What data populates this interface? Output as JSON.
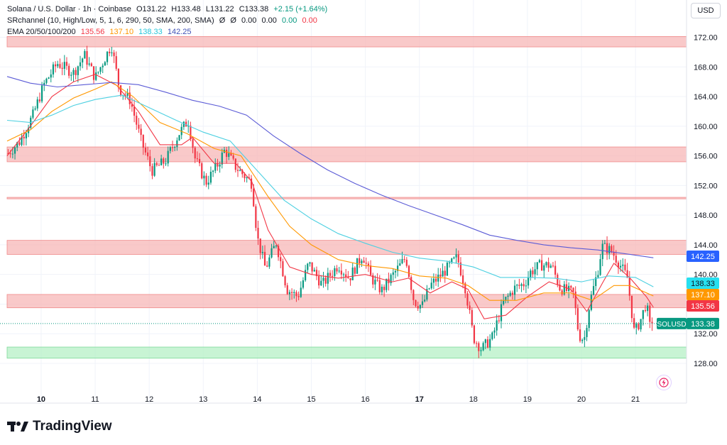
{
  "legend": {
    "symbol": "Solana / U.S. Dollar · 1h · Coinbase",
    "open": "O131.22",
    "high": "H133.48",
    "low": "L131.22",
    "close": "C133.38",
    "change": "+2.15 (+1.64%)",
    "sr_title": "SRchannel (10, High/Low, 5, 1, 6, 290, 50, SMA, 200, SMA)",
    "sr_values": [
      "Ø",
      "Ø",
      "0.00",
      "0.00",
      "0.00",
      "0.00"
    ],
    "ema_title": "EMA 20/50/100/200",
    "ema_values": [
      "135.56",
      "137.10",
      "138.33",
      "142.25"
    ]
  },
  "currency_button": "USD",
  "brand": "TradingView",
  "colors": {
    "up": "#089981",
    "down": "#f23645",
    "ema20": "#f23645",
    "ema50": "#ff9800",
    "ema100": "#4dd0e1",
    "ema200": "#5b5bd6",
    "res_zone": "#f7b7b7",
    "sup_zone": "#b6f0c6"
  },
  "chart_data": {
    "type": "candlestick",
    "title": "Solana / U.S. Dollar · 1h · Coinbase",
    "ylim": [
      126.2,
      174.5
    ],
    "y_ticks": [
      "128.00",
      "132.00",
      "136.00",
      "140.00",
      "144.00",
      "148.00",
      "152.00",
      "156.00",
      "160.00",
      "164.00",
      "168.00",
      "172.00"
    ],
    "x_ticks": [
      "10",
      "11",
      "12",
      "13",
      "14",
      "15",
      "16",
      "17",
      "18",
      "19",
      "20",
      "21"
    ],
    "x_tick_days": [
      10,
      11,
      12,
      13,
      14,
      15,
      16,
      17,
      18,
      19,
      20,
      21
    ],
    "x_range_days": [
      9.37,
      21.55
    ],
    "zones": [
      {
        "type": "resistance",
        "from": 170.7,
        "to": 172.1
      },
      {
        "type": "resistance",
        "from": 155.2,
        "to": 157.2
      },
      {
        "type": "resistance",
        "from": 150.2,
        "to": 150.4
      },
      {
        "type": "resistance",
        "from": 142.7,
        "to": 144.6
      },
      {
        "type": "resistance",
        "from": 135.5,
        "to": 137.3
      },
      {
        "type": "support",
        "from": 128.7,
        "to": 130.2
      }
    ],
    "price_path": [
      [
        9.37,
        156.2
      ],
      [
        9.6,
        157.9
      ],
      [
        9.85,
        161.5
      ],
      [
        10.05,
        165.6
      ],
      [
        10.3,
        168.5
      ],
      [
        10.6,
        167.2
      ],
      [
        10.8,
        169.6
      ],
      [
        11.0,
        166.5
      ],
      [
        11.1,
        168.0
      ],
      [
        11.3,
        171.0
      ],
      [
        11.45,
        165.0
      ],
      [
        11.65,
        163.5
      ],
      [
        11.85,
        158.0
      ],
      [
        12.05,
        154.0
      ],
      [
        12.3,
        155.3
      ],
      [
        12.55,
        159.0
      ],
      [
        12.72,
        160.8
      ],
      [
        12.85,
        155.6
      ],
      [
        13.05,
        152.4
      ],
      [
        13.25,
        154.6
      ],
      [
        13.4,
        156.8
      ],
      [
        13.6,
        154.5
      ],
      [
        13.9,
        152.3
      ],
      [
        14.0,
        145.0
      ],
      [
        14.15,
        140.8
      ],
      [
        14.35,
        144.3
      ],
      [
        14.55,
        138.0
      ],
      [
        14.75,
        137.0
      ],
      [
        14.95,
        141.5
      ],
      [
        15.2,
        138.6
      ],
      [
        15.5,
        141.3
      ],
      [
        15.7,
        139.5
      ],
      [
        15.95,
        142.7
      ],
      [
        16.1,
        139.6
      ],
      [
        16.3,
        137.8
      ],
      [
        16.55,
        140.3
      ],
      [
        16.75,
        142.3
      ],
      [
        16.9,
        136.4
      ],
      [
        17.05,
        135.7
      ],
      [
        17.2,
        138.5
      ],
      [
        17.45,
        140.3
      ],
      [
        17.7,
        142.3
      ],
      [
        17.85,
        138.2
      ],
      [
        18.0,
        131.5
      ],
      [
        18.15,
        129.9
      ],
      [
        18.35,
        131.5
      ],
      [
        18.55,
        136.1
      ],
      [
        18.75,
        138.1
      ],
      [
        18.95,
        138.8
      ],
      [
        19.05,
        140.3
      ],
      [
        19.25,
        141.3
      ],
      [
        19.45,
        141.2
      ],
      [
        19.6,
        138.2
      ],
      [
        19.85,
        137.4
      ],
      [
        19.95,
        131.8
      ],
      [
        20.05,
        131.2
      ],
      [
        20.15,
        136.1
      ],
      [
        20.3,
        140.4
      ],
      [
        20.38,
        143.8
      ],
      [
        20.55,
        143.2
      ],
      [
        20.7,
        141.5
      ],
      [
        20.85,
        139.5
      ],
      [
        20.98,
        132.0
      ],
      [
        21.1,
        134.0
      ],
      [
        21.2,
        136.2
      ],
      [
        21.3,
        131.2
      ],
      [
        21.33,
        133.38
      ]
    ],
    "ema_series": [
      {
        "name": "EMA 20",
        "last": 135.56,
        "values": [
          [
            9.37,
            156.0
          ],
          [
            9.8,
            160.0
          ],
          [
            10.2,
            164.0
          ],
          [
            10.6,
            166.0
          ],
          [
            11.0,
            167.0
          ],
          [
            11.4,
            165.5
          ],
          [
            11.8,
            162.0
          ],
          [
            12.2,
            157.5
          ],
          [
            12.6,
            157.5
          ],
          [
            12.8,
            158.5
          ],
          [
            13.2,
            155.0
          ],
          [
            13.6,
            155.0
          ],
          [
            13.9,
            152.5
          ],
          [
            14.2,
            146.0
          ],
          [
            14.6,
            141.0
          ],
          [
            15.0,
            140.0
          ],
          [
            15.5,
            139.5
          ],
          [
            16.0,
            140.0
          ],
          [
            16.5,
            139.0
          ],
          [
            16.8,
            139.5
          ],
          [
            17.2,
            137.5
          ],
          [
            17.6,
            139.0
          ],
          [
            17.9,
            138.0
          ],
          [
            18.2,
            134.0
          ],
          [
            18.6,
            134.5
          ],
          [
            19.0,
            137.0
          ],
          [
            19.4,
            139.0
          ],
          [
            19.8,
            138.0
          ],
          [
            20.1,
            135.0
          ],
          [
            20.4,
            139.0
          ],
          [
            20.6,
            141.5
          ],
          [
            20.9,
            139.5
          ],
          [
            21.2,
            137.0
          ],
          [
            21.33,
            135.56
          ]
        ]
      },
      {
        "name": "EMA 50",
        "last": 137.1,
        "values": [
          [
            9.37,
            158.0
          ],
          [
            9.8,
            159.5
          ],
          [
            10.2,
            162.0
          ],
          [
            10.6,
            163.8
          ],
          [
            11.0,
            165.0
          ],
          [
            11.3,
            166.0
          ],
          [
            11.7,
            164.0
          ],
          [
            12.2,
            160.5
          ],
          [
            12.7,
            159.0
          ],
          [
            13.2,
            157.0
          ],
          [
            13.7,
            156.0
          ],
          [
            14.2,
            150.5
          ],
          [
            14.6,
            146.5
          ],
          [
            15.0,
            144.0
          ],
          [
            15.5,
            142.0
          ],
          [
            16.0,
            141.2
          ],
          [
            16.5,
            140.8
          ],
          [
            17.0,
            139.8
          ],
          [
            17.5,
            139.5
          ],
          [
            17.9,
            138.5
          ],
          [
            18.3,
            136.5
          ],
          [
            18.8,
            136.5
          ],
          [
            19.3,
            137.5
          ],
          [
            19.8,
            137.5
          ],
          [
            20.2,
            136.5
          ],
          [
            20.6,
            138.5
          ],
          [
            20.9,
            138.5
          ],
          [
            21.33,
            137.1
          ]
        ]
      },
      {
        "name": "EMA 100",
        "last": 138.33,
        "values": [
          [
            9.37,
            160.8
          ],
          [
            9.8,
            160.5
          ],
          [
            10.2,
            161.5
          ],
          [
            10.6,
            162.8
          ],
          [
            11.0,
            163.6
          ],
          [
            11.5,
            164.2
          ],
          [
            12.0,
            162.5
          ],
          [
            12.5,
            160.8
          ],
          [
            13.0,
            159.2
          ],
          [
            13.5,
            158.0
          ],
          [
            14.0,
            154.0
          ],
          [
            14.5,
            150.0
          ],
          [
            15.0,
            147.5
          ],
          [
            15.5,
            145.5
          ],
          [
            16.0,
            144.2
          ],
          [
            16.5,
            143.0
          ],
          [
            17.0,
            142.2
          ],
          [
            17.5,
            141.8
          ],
          [
            18.0,
            141.0
          ],
          [
            18.5,
            139.6
          ],
          [
            19.0,
            139.6
          ],
          [
            19.5,
            139.5
          ],
          [
            20.0,
            139.0
          ],
          [
            20.5,
            139.8
          ],
          [
            21.0,
            139.6
          ],
          [
            21.33,
            138.33
          ]
        ]
      },
      {
        "name": "EMA 200",
        "last": 142.25,
        "values": [
          [
            9.37,
            166.7
          ],
          [
            9.8,
            165.8
          ],
          [
            10.3,
            165.3
          ],
          [
            10.8,
            165.6
          ],
          [
            11.3,
            165.9
          ],
          [
            11.8,
            165.6
          ],
          [
            12.3,
            164.6
          ],
          [
            12.8,
            163.5
          ],
          [
            13.3,
            162.7
          ],
          [
            13.8,
            161.5
          ],
          [
            14.3,
            158.7
          ],
          [
            14.8,
            156.3
          ],
          [
            15.3,
            154.1
          ],
          [
            15.8,
            152.3
          ],
          [
            16.3,
            150.7
          ],
          [
            16.8,
            149.3
          ],
          [
            17.3,
            148.0
          ],
          [
            17.8,
            146.7
          ],
          [
            18.3,
            145.3
          ],
          [
            18.8,
            144.6
          ],
          [
            19.3,
            144.0
          ],
          [
            19.8,
            143.6
          ],
          [
            20.3,
            143.3
          ],
          [
            20.8,
            142.8
          ],
          [
            21.33,
            142.25
          ]
        ]
      }
    ],
    "last_price": {
      "label": "SOLUSD",
      "value": 133.38
    }
  }
}
